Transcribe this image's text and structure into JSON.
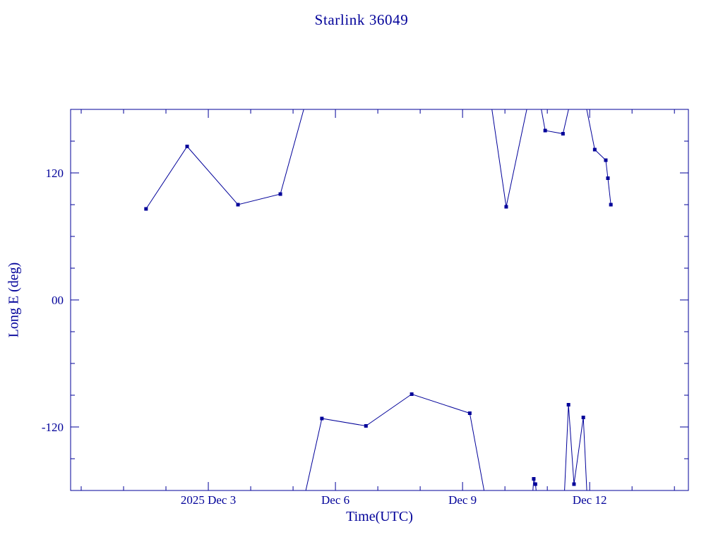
{
  "chart_data": {
    "type": "line",
    "title": "Starlink 36049",
    "xlabel": "Time(UTC)",
    "ylabel": "Long E (deg)",
    "line_color": "#000099",
    "background": "#ffffff",
    "x_unit": "day of December 2025 (UTC)",
    "x_range": [
      -0.25,
      14.33
    ],
    "y_range": [
      -180,
      180
    ],
    "x_major_ticks": [
      {
        "day": 3,
        "label": "2025 Dec 3"
      },
      {
        "day": 6,
        "label": "Dec 6"
      },
      {
        "day": 9,
        "label": "Dec 9"
      },
      {
        "day": 12,
        "label": "Dec 12"
      }
    ],
    "x_minor_tick_step_days": 1,
    "y_major_ticks": [
      {
        "value": 120,
        "label": "120"
      },
      {
        "value": 0,
        "label": "00"
      },
      {
        "value": -120,
        "label": "-120"
      }
    ],
    "y_minor_tick_step": 30,
    "wrap_note": "longitude wraps at +/-180 deg; segment endpoints beyond the y-range are off-scale helpers so clipped lines exit the frame like the original",
    "segments": [
      [
        [
          1.53,
          86
        ],
        [
          2.5,
          145
        ],
        [
          3.7,
          90
        ],
        [
          4.7,
          100
        ],
        [
          5.5,
          216
        ]
      ],
      [
        [
          5.1,
          -216
        ],
        [
          5.68,
          -112
        ],
        [
          6.72,
          -119
        ],
        [
          7.8,
          -89
        ],
        [
          9.17,
          -107
        ],
        [
          9.6,
          -200
        ]
      ],
      [
        [
          9.62,
          200
        ],
        [
          10.03,
          88
        ],
        [
          10.7,
          215
        ],
        [
          10.95,
          160
        ],
        [
          11.37,
          157
        ],
        [
          11.73,
          220
        ],
        [
          12.12,
          142
        ],
        [
          12.38,
          132
        ],
        [
          12.43,
          115
        ],
        [
          12.5,
          90
        ]
      ],
      [
        [
          10.655,
          -183
        ],
        [
          10.68,
          -169
        ],
        [
          10.72,
          -174
        ],
        [
          10.745,
          -183
        ]
      ],
      [
        [
          11.35,
          -230
        ],
        [
          11.5,
          -99
        ],
        [
          11.63,
          -174
        ],
        [
          11.85,
          -111
        ],
        [
          11.95,
          -195
        ]
      ]
    ],
    "points": [
      [
        1.53,
        86
      ],
      [
        2.5,
        145
      ],
      [
        3.7,
        90
      ],
      [
        4.7,
        100
      ],
      [
        5.68,
        -112
      ],
      [
        6.72,
        -119
      ],
      [
        7.8,
        -89
      ],
      [
        9.17,
        -107
      ],
      [
        10.03,
        88
      ],
      [
        10.68,
        -169
      ],
      [
        10.72,
        -174
      ],
      [
        10.95,
        160
      ],
      [
        11.37,
        157
      ],
      [
        11.5,
        -99
      ],
      [
        11.63,
        -174
      ],
      [
        11.85,
        -111
      ],
      [
        12.12,
        142
      ],
      [
        12.38,
        132
      ],
      [
        12.43,
        115
      ],
      [
        12.5,
        90
      ]
    ]
  }
}
